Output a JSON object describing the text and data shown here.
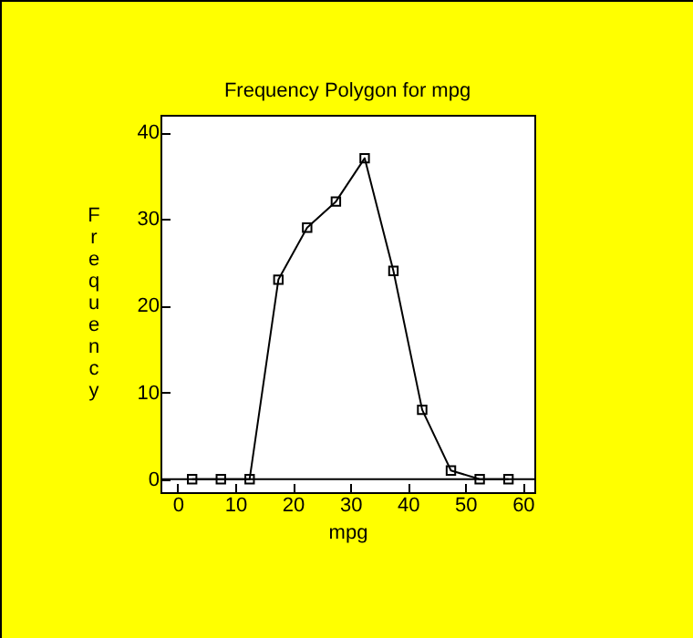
{
  "chart_data": {
    "type": "line",
    "title": "Frequency Polygon for mpg",
    "xlabel": "mpg",
    "ylabel": "Frequency",
    "x": [
      2.5,
      7.5,
      12.5,
      17.5,
      22.5,
      27.5,
      32.5,
      37.5,
      42.5,
      47.5,
      52.5,
      57.5
    ],
    "series": [
      {
        "color": "#000000",
        "values": [
          0,
          0,
          0,
          23,
          29,
          32,
          37,
          24,
          8,
          1,
          0,
          0
        ]
      }
    ],
    "xlim": [
      -3,
      62
    ],
    "xticks": [
      0,
      10,
      20,
      30,
      40,
      50,
      60
    ],
    "ylim": [
      -1.5,
      42
    ],
    "yticks": [
      0,
      10,
      20,
      30,
      40
    ],
    "ref_lines": [
      {
        "axis": "y",
        "value": 0,
        "color": "#000000"
      }
    ],
    "marker": "square",
    "line_style": "solid",
    "grid": false
  }
}
